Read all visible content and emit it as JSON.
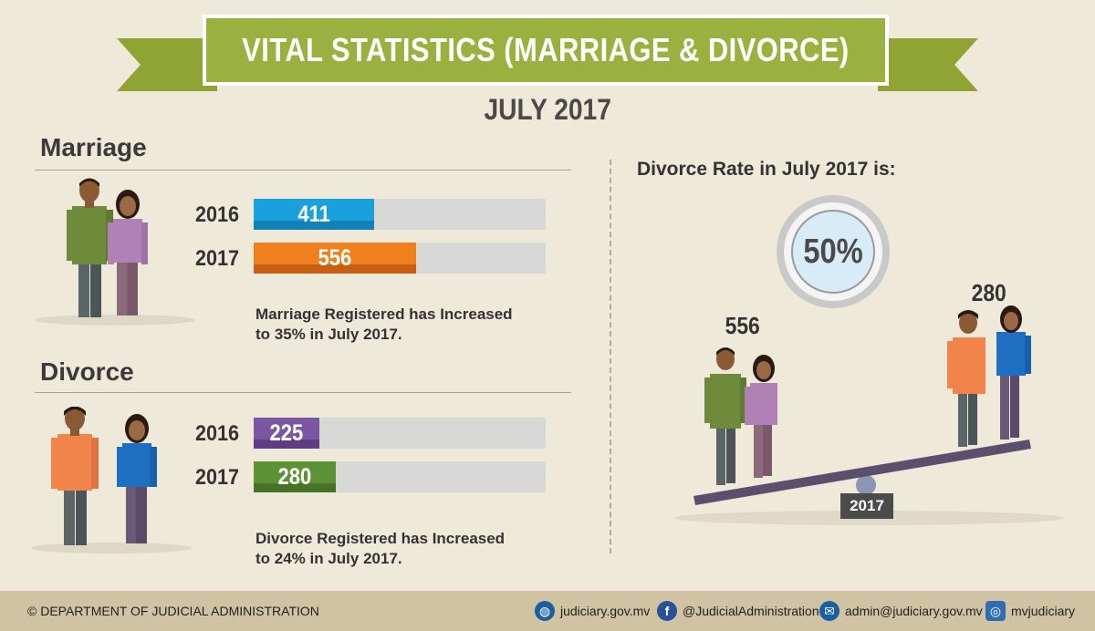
{
  "banner": {
    "title": "VITAL STATISTICS (MARRIAGE & DIVORCE)"
  },
  "period": "JULY 2017",
  "marriage": {
    "heading": "Marriage",
    "note_line1": "Marriage Registered has Increased",
    "note_line2": "to 35% in July 2017."
  },
  "divorce": {
    "heading": "Divorce",
    "note_line1": "Divorce Registered has Increased",
    "note_line2": "to 24% in July 2017."
  },
  "rate_panel": {
    "label": "Divorce Rate in July 2017 is:",
    "rate": "50%",
    "left_value": "556",
    "right_value": "280",
    "year_tag": "2017"
  },
  "footer": {
    "copyright": "© DEPARTMENT OF JUDICIAL ADMINISTRATION",
    "website": "judiciary.gov.mv",
    "facebook": "@JudicialAdministration",
    "email": "admin@judiciary.gov.mv",
    "instagram": "mvjudiciary"
  },
  "colors": {
    "banner": "#9bb13f",
    "marriage_2016": "#1aa0dc",
    "marriage_2017": "#f0801e",
    "divorce_2016": "#7b57a3",
    "divorce_2017": "#5d9236",
    "track": "#d8d8d6"
  },
  "chart_data": [
    {
      "type": "bar",
      "title": "Marriage",
      "categories": [
        "2016",
        "2017"
      ],
      "values": [
        411,
        556
      ],
      "value_labels": [
        "411",
        "556"
      ],
      "xlim": [
        0,
        1000
      ]
    },
    {
      "type": "bar",
      "title": "Divorce",
      "categories": [
        "2016",
        "2017"
      ],
      "values": [
        225,
        280
      ],
      "value_labels": [
        "225",
        "280"
      ],
      "xlim": [
        0,
        1000
      ]
    }
  ]
}
